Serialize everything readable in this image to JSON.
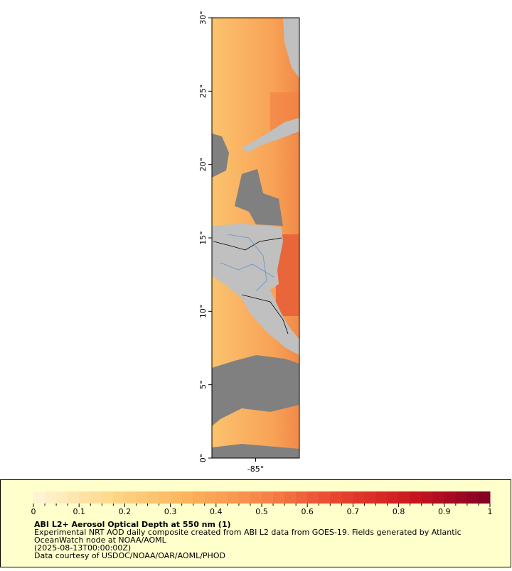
{
  "map": {
    "lat_range": [
      0,
      30
    ],
    "lon_range": [
      -88,
      -82
    ],
    "lat_ticks": [
      {
        "value": 0,
        "label": "0°"
      },
      {
        "value": 5,
        "label": "5°"
      },
      {
        "value": 10,
        "label": "10°"
      },
      {
        "value": 15,
        "label": "15°"
      },
      {
        "value": 20,
        "label": "20°"
      },
      {
        "value": 25,
        "label": "25°"
      },
      {
        "value": 30,
        "label": "30°"
      }
    ],
    "lon_ticks": [
      {
        "value": -85,
        "label": "-85°"
      }
    ]
  },
  "colorbar": {
    "range": [
      0,
      1
    ],
    "ticks": [
      0,
      0.1,
      0.2,
      0.3,
      0.4,
      0.5,
      0.6,
      0.7,
      0.8,
      0.9,
      1
    ],
    "colors": [
      "#fff6d8",
      "#fed98a",
      "#fcb45c",
      "#f7874a",
      "#e8432f",
      "#c9151f",
      "#800026"
    ]
  },
  "caption": {
    "title": "ABI L2+ Aerosol Optical Depth at 550 nm (1)",
    "lines": [
      "Experimental NRT AOD daily composite created from ABI L2 data from GOES-19. Fields generated by Atlantic",
      "OceanWatch node at NOAA/AOML",
      "(2025-08-13T00:00:00Z)",
      "Data courtesy of USDOC/NOAA/OAR/AOML/PHOD"
    ]
  }
}
